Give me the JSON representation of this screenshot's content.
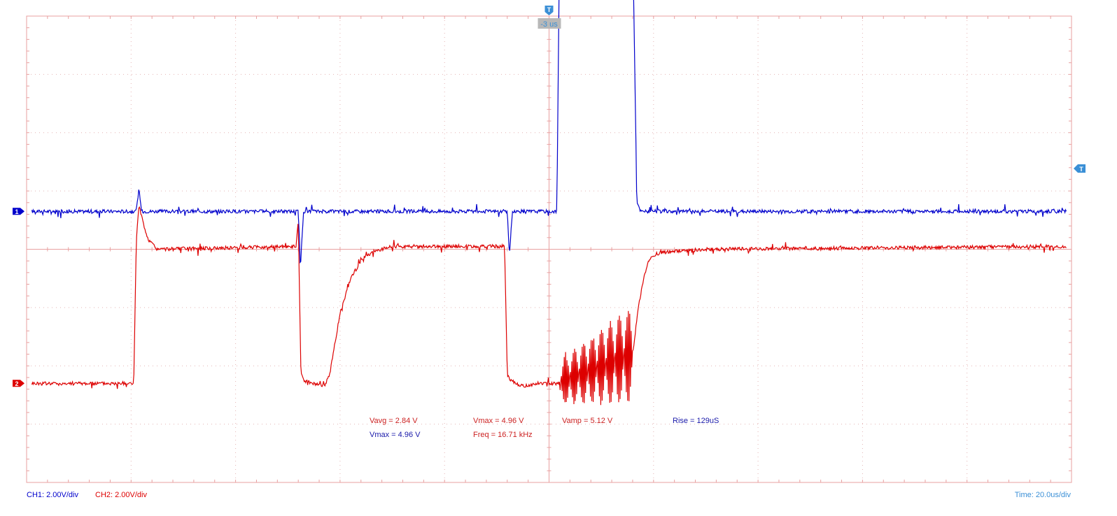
{
  "chart_data": {
    "type": "line",
    "title": "",
    "xlabel": "",
    "ylabel": "",
    "grid": true,
    "grid_divisions": {
      "x": 10,
      "y": 8
    },
    "x_unit": "us",
    "x_per_div": 20,
    "xlim": [
      -100,
      100
    ],
    "ylim_divisions": [
      -4,
      4
    ],
    "trigger_offset_label": "-3 us",
    "trigger_marker": "T",
    "channels": [
      {
        "name": "CH1",
        "marker_label": "1",
        "color": "#0000cc",
        "scale_label": "CH1: 2.00V/div",
        "volts_per_div": 2.0,
        "ground_div": 0.65,
        "x_us": [
          -99,
          -79,
          -78.5,
          -78,
          -48,
          -47.6,
          -47,
          -8,
          -7.6,
          -7,
          1.5,
          2,
          16,
          16.4,
          16.8,
          17.5,
          99
        ],
        "y_volts": [
          0,
          0,
          0.8,
          0,
          0,
          -2,
          0,
          0,
          -1.5,
          0,
          0,
          9.1,
          9.3,
          5.0,
          0.3,
          0,
          0
        ]
      },
      {
        "name": "CH2",
        "marker_label": "2",
        "color": "#dd0000",
        "scale_label": "CH2: 2.00V/div",
        "volts_per_div": 2.0,
        "ground_div": -2.3,
        "x_us": [
          -99,
          -79.5,
          -79,
          -78.5,
          -77,
          -75,
          -48.5,
          -48,
          -47.5,
          -47,
          -43,
          -42,
          -40,
          -38,
          -36,
          -34,
          -32,
          -30,
          -8.5,
          -8,
          -7.5,
          -5,
          -2,
          1.5,
          16,
          17,
          18,
          19,
          20,
          22,
          25,
          30,
          99
        ],
        "y_volts": [
          0,
          0,
          4.9,
          6.1,
          5.0,
          4.6,
          4.7,
          5.5,
          0.4,
          0.1,
          -0.1,
          0.3,
          2.4,
          3.6,
          4.2,
          4.5,
          4.6,
          4.7,
          4.7,
          0.3,
          0.1,
          -0.1,
          0.0,
          0.0,
          1.0,
          2.5,
          3.5,
          4.2,
          4.4,
          4.5,
          4.55,
          4.6,
          4.7
        ]
      }
    ],
    "measurements": [
      {
        "label": "Vavg = 2.84 V",
        "color": "#cc2222"
      },
      {
        "label": "Vmax = 4.96 V",
        "color": "#cc2222"
      },
      {
        "label": "Vamp = 5.12 V",
        "color": "#cc2222"
      },
      {
        "label": "Rise = 129uS",
        "color": "#1a1aaa"
      },
      {
        "label": "Vmax = 4.96 V",
        "color": "#1a1aaa"
      },
      {
        "label": "Freq = 16.71 kHz",
        "color": "#cc2222"
      }
    ],
    "timebase_label": "Time: 20.0us/div"
  },
  "colors": {
    "grid": "#e8a0a0",
    "grid_dots": "#e4b4b4",
    "trigger": "#3a8fd6",
    "trigger_label_bg": "#b8b8b8",
    "timebase": "#3a8fd6"
  }
}
